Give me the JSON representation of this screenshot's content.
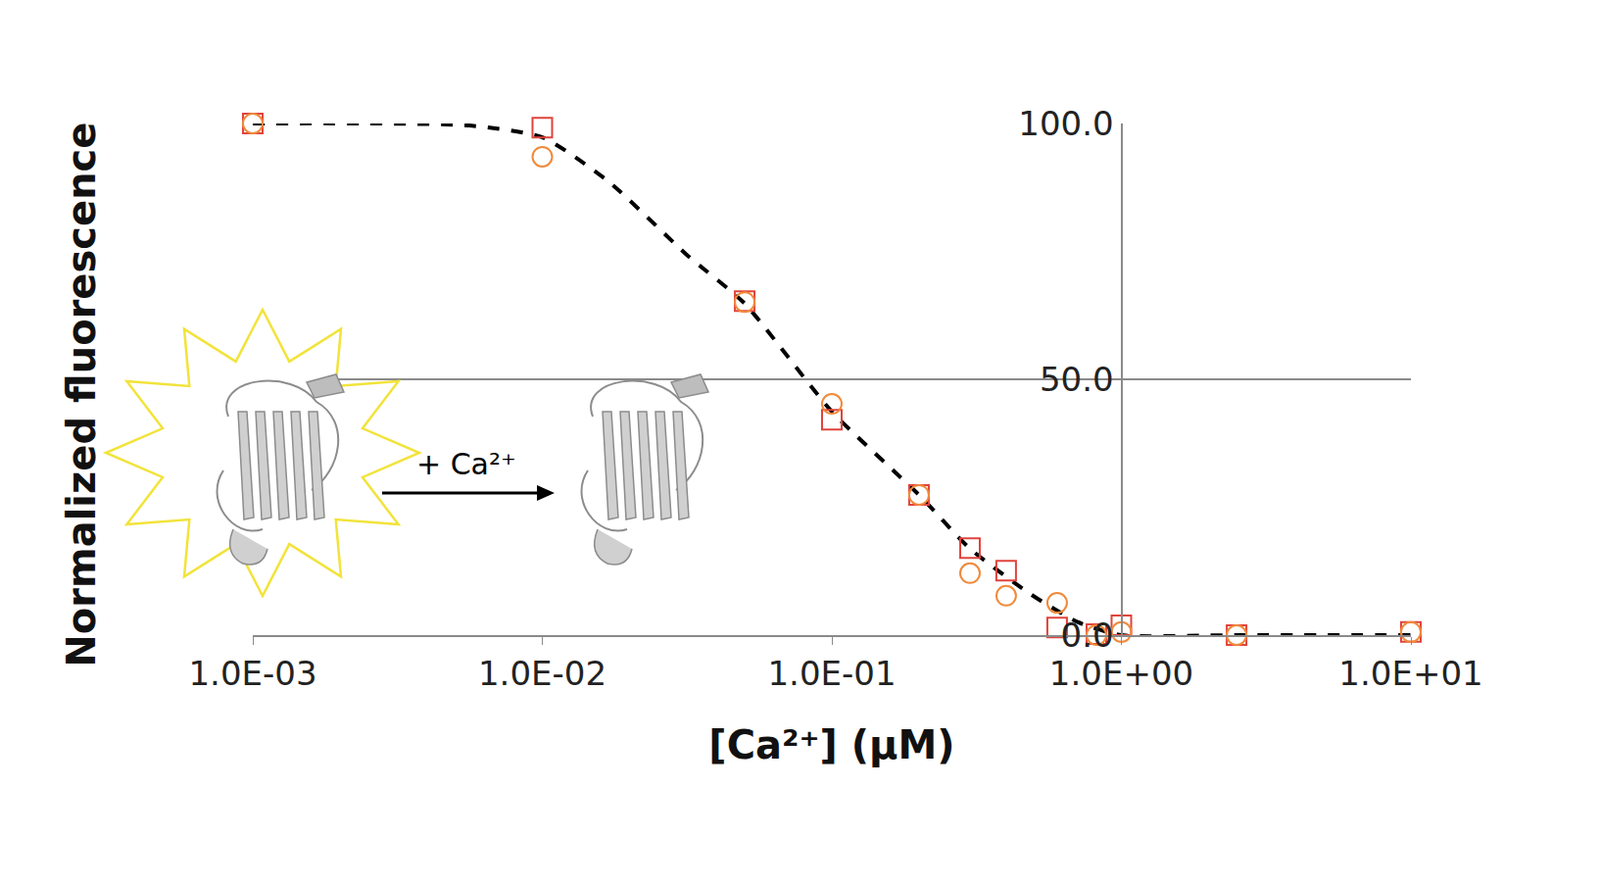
{
  "chart_data": {
    "type": "scatter",
    "x_label": "[Ca²⁺] (μM)",
    "y_label": "Normalized fluorescence",
    "annotations": [
      "+ Ca²⁺"
    ],
    "log": "x",
    "grid": true,
    "xlim": [
      0.001,
      10
    ],
    "xticks": [
      {
        "value": 0.001,
        "label": "1.0E-03"
      },
      {
        "value": 0.01,
        "label": "1.0E-02"
      },
      {
        "value": 0.1,
        "label": "1.0E-01"
      },
      {
        "value": 1,
        "label": "1.0E+00"
      },
      {
        "value": 10,
        "label": "1.0E+01"
      }
    ],
    "ylim": [
      0,
      100
    ],
    "yticks": [
      {
        "value": 0,
        "label": "0.0"
      },
      {
        "value": 50,
        "label": "50.0"
      },
      {
        "value": 100,
        "label": "100.0"
      }
    ],
    "series": [
      {
        "type": "scatter",
        "marker": "square-open",
        "color": "#e0443c",
        "x": [
          0.001,
          0.01,
          0.05,
          0.1,
          0.2,
          0.3,
          0.4,
          0.6,
          0.82,
          1.0,
          2.5,
          10
        ],
        "values": [
          100,
          99.2,
          65.3,
          42.1,
          27.4,
          17.0,
          12.6,
          1.5,
          0.2,
          1.9,
          0,
          0.6
        ]
      },
      {
        "type": "scatter",
        "marker": "circle-open",
        "color": "#f08a3c",
        "x": [
          0.001,
          0.01,
          0.05,
          0.1,
          0.2,
          0.3,
          0.4,
          0.6,
          0.82,
          1.0,
          2.5,
          10
        ],
        "values": [
          100,
          93.5,
          65.1,
          45.2,
          27.4,
          12.1,
          7.7,
          6.3,
          0,
          0.6,
          0,
          0.6
        ]
      },
      {
        "type": "line",
        "line_style": "dash",
        "color": "#000000",
        "x": [
          0.001,
          0.0056,
          0.01,
          0.0169,
          0.0316,
          0.05,
          0.1,
          0.2,
          0.3,
          0.48,
          0.71,
          1.0,
          2.5,
          10
        ],
        "values": [
          100,
          99.6,
          97.3,
          88.7,
          74.3,
          64.8,
          43.7,
          27.4,
          16.9,
          8.2,
          2.5,
          0,
          0,
          0
        ]
      }
    ]
  }
}
